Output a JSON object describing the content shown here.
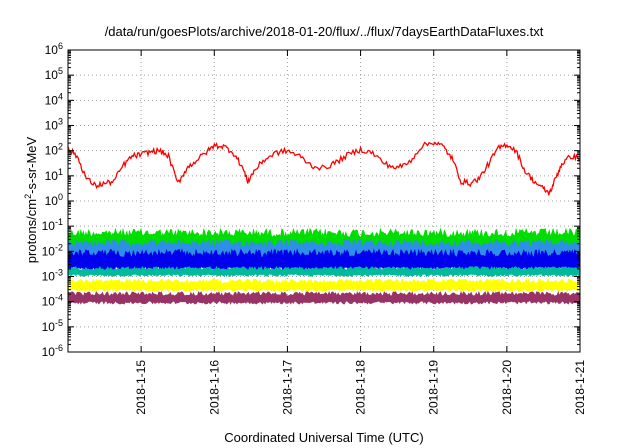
{
  "chart_data": {
    "type": "line",
    "title": "/data/run/goesPlots/archive/2018-01-20/flux/../flux/7daysEarthDataFluxes.txt",
    "xlabel": "Coordinated Universal Time (UTC)",
    "ylabel": "protons/cm2-s-sr-MeV",
    "ylabel_parts": {
      "before": "protons/cm",
      "sup": "2",
      "after": "-s-sr-MeV"
    },
    "y_scale": "log",
    "ylim_exponents": [
      -6,
      6
    ],
    "y_tick_labels": [
      {
        "base": "10",
        "exp": "-6"
      },
      {
        "base": "10",
        "exp": "-5"
      },
      {
        "base": "10",
        "exp": "-4"
      },
      {
        "base": "10",
        "exp": "-3"
      },
      {
        "base": "10",
        "exp": "-2"
      },
      {
        "base": "10",
        "exp": "-1"
      },
      {
        "base": "10",
        "exp": "0"
      },
      {
        "base": "10",
        "exp": "1"
      },
      {
        "base": "10",
        "exp": "2"
      },
      {
        "base": "10",
        "exp": "3"
      },
      {
        "base": "10",
        "exp": "4"
      },
      {
        "base": "10",
        "exp": "5"
      },
      {
        "base": "10",
        "exp": "6"
      }
    ],
    "xlim": [
      "2018-01-14 00:00",
      "2018-01-21 00:00"
    ],
    "x_tick_labels": [
      "2018-1-15",
      "2018-1-16",
      "2018-1-17",
      "2018-1-18",
      "2018-1-19",
      "2018-1-20",
      "2018-1-21"
    ],
    "grid": true,
    "legend": "none",
    "series": [
      {
        "color": "#ff0000",
        "style": "line",
        "points": [
          [
            "2018-01-14 00:00",
            120
          ],
          [
            "2018-01-14 03:00",
            60
          ],
          [
            "2018-01-14 06:00",
            8
          ],
          [
            "2018-01-14 09:00",
            4
          ],
          [
            "2018-01-14 12:00",
            5
          ],
          [
            "2018-01-14 15:00",
            6
          ],
          [
            "2018-01-14 18:00",
            25
          ],
          [
            "2018-01-14 21:00",
            60
          ],
          [
            "2018-01-15 00:00",
            70
          ],
          [
            "2018-01-15 03:00",
            90
          ],
          [
            "2018-01-15 06:00",
            100
          ],
          [
            "2018-01-15 09:00",
            60
          ],
          [
            "2018-01-15 12:00",
            5
          ],
          [
            "2018-01-15 15:00",
            20
          ],
          [
            "2018-01-15 18:00",
            40
          ],
          [
            "2018-01-15 21:00",
            80
          ],
          [
            "2018-01-16 00:00",
            160
          ],
          [
            "2018-01-16 03:00",
            150
          ],
          [
            "2018-01-16 06:00",
            90
          ],
          [
            "2018-01-16 09:00",
            25
          ],
          [
            "2018-01-16 11:00",
            6
          ],
          [
            "2018-01-16 13:00",
            15
          ],
          [
            "2018-01-16 16:00",
            40
          ],
          [
            "2018-01-16 20:00",
            80
          ],
          [
            "2018-01-17 00:00",
            100
          ],
          [
            "2018-01-17 04:00",
            60
          ],
          [
            "2018-01-17 08:00",
            25
          ],
          [
            "2018-01-17 12:00",
            20
          ],
          [
            "2018-01-17 16:00",
            35
          ],
          [
            "2018-01-17 20:00",
            70
          ],
          [
            "2018-01-18 00:00",
            110
          ],
          [
            "2018-01-18 04:00",
            80
          ],
          [
            "2018-01-18 08:00",
            30
          ],
          [
            "2018-01-18 12:00",
            20
          ],
          [
            "2018-01-18 16:00",
            35
          ],
          [
            "2018-01-18 20:00",
            150
          ],
          [
            "2018-01-19 00:00",
            220
          ],
          [
            "2018-01-19 03:00",
            150
          ],
          [
            "2018-01-19 06:00",
            50
          ],
          [
            "2018-01-19 09:00",
            6
          ],
          [
            "2018-01-19 12:00",
            5
          ],
          [
            "2018-01-19 15:00",
            8
          ],
          [
            "2018-01-19 18:00",
            30
          ],
          [
            "2018-01-19 21:00",
            120
          ],
          [
            "2018-01-20 00:00",
            180
          ],
          [
            "2018-01-20 03:00",
            100
          ],
          [
            "2018-01-20 06:00",
            15
          ],
          [
            "2018-01-20 09:00",
            6
          ],
          [
            "2018-01-20 12:00",
            3
          ],
          [
            "2018-01-20 14:00",
            2
          ],
          [
            "2018-01-20 16:00",
            8
          ],
          [
            "2018-01-20 18:00",
            30
          ],
          [
            "2018-01-20 21:00",
            60
          ],
          [
            "2018-01-21 00:00",
            50
          ]
        ]
      },
      {
        "color": "#00dd00",
        "style": "noise-band",
        "top": 0.08,
        "bottom": 0.008
      },
      {
        "color": "#2e8fe6",
        "style": "noise-band",
        "top": 0.03,
        "bottom": 0.004
      },
      {
        "color": "#0000ee",
        "style": "noise-band",
        "top": 0.012,
        "bottom": 0.0015
      },
      {
        "color": "#00bb99",
        "style": "noise-band",
        "top": 0.0025,
        "bottom": 0.001
      },
      {
        "color": "#ffff00",
        "style": "noise-band",
        "top": 0.0008,
        "bottom": 0.00025
      },
      {
        "color": "#993366",
        "style": "noise-band",
        "top": 0.00025,
        "bottom": 8e-05
      }
    ]
  }
}
